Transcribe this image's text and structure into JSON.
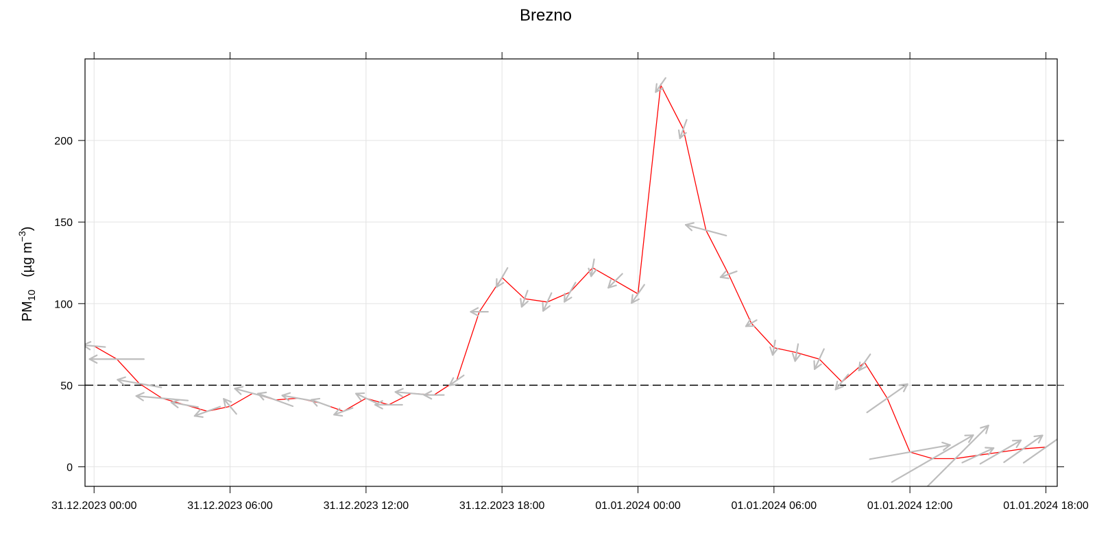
{
  "chart_data": {
    "type": "line",
    "title": "Brezno",
    "ylabel": {
      "base": "PM",
      "sub": "10",
      "units_prefix": "(µg m",
      "units_sup": "−3",
      "units_suffix": ")"
    },
    "xlabel": "",
    "xlim_hours": [
      -0.4,
      42.5
    ],
    "ylim": [
      -12,
      250
    ],
    "x_ticks": [
      {
        "hour": 0,
        "label": "31.12.2023 00:00"
      },
      {
        "hour": 6,
        "label": "31.12.2023 06:00"
      },
      {
        "hour": 12,
        "label": "31.12.2023 12:00"
      },
      {
        "hour": 18,
        "label": "31.12.2023 18:00"
      },
      {
        "hour": 24,
        "label": "01.01.2024 00:00"
      },
      {
        "hour": 30,
        "label": "01.01.2024 06:00"
      },
      {
        "hour": 36,
        "label": "01.01.2024 12:00"
      },
      {
        "hour": 42,
        "label": "01.01.2024 18:00"
      }
    ],
    "y_ticks": [
      0,
      50,
      100,
      150,
      200
    ],
    "grid": true,
    "reference_line": {
      "y": 50,
      "style": "dashed",
      "color": "#000000"
    },
    "line_color": "#ff0000",
    "arrow_color": "#bdbdbd",
    "series": [
      {
        "x_hours": [
          0,
          1,
          2,
          3,
          4,
          5,
          6,
          7,
          8,
          9,
          10,
          11,
          12,
          13,
          14,
          15,
          16,
          17,
          18,
          19,
          20,
          21,
          22,
          23,
          24,
          25,
          26,
          27,
          28,
          29,
          30,
          31,
          32,
          33,
          34,
          35,
          36,
          37,
          38,
          39,
          40,
          41,
          42
        ],
        "values": [
          74,
          66,
          51,
          42,
          38,
          34,
          37,
          45,
          41,
          42,
          39,
          34,
          42,
          38,
          45,
          44,
          53,
          95,
          116,
          103,
          101,
          107,
          122,
          114,
          106,
          234,
          207,
          145,
          118,
          88,
          73,
          70,
          66,
          52,
          64,
          42,
          9,
          5,
          5,
          7,
          9,
          11,
          12
        ],
        "wind_direction_deg": [
          95,
          90,
          100,
          95,
          100,
          70,
          140,
          105,
          110,
          100,
          110,
          70,
          115,
          90,
          95,
          90,
          55,
          90,
          30,
          20,
          25,
          30,
          10,
          45,
          35,
          35,
          20,
          105,
          70,
          60,
          10,
          10,
          25,
          40,
          35,
          235,
          260,
          240,
          225,
          245,
          240,
          235,
          235
        ],
        "wind_speed_scale": [
          0.9,
          2.2,
          1.8,
          2.1,
          1.1,
          1.1,
          0.8,
          1.5,
          1.5,
          1.3,
          0.8,
          0.8,
          0.9,
          1.1,
          1.3,
          0.8,
          0.7,
          0.7,
          0.9,
          0.7,
          0.8,
          0.9,
          0.7,
          0.8,
          0.9,
          0.7,
          0.8,
          1.7,
          0.7,
          0.5,
          0.6,
          0.7,
          0.9,
          0.8,
          0.8,
          2.0,
          3.3,
          3.8,
          3.8,
          1.4,
          1.9,
          1.9,
          2.2
        ]
      }
    ]
  }
}
